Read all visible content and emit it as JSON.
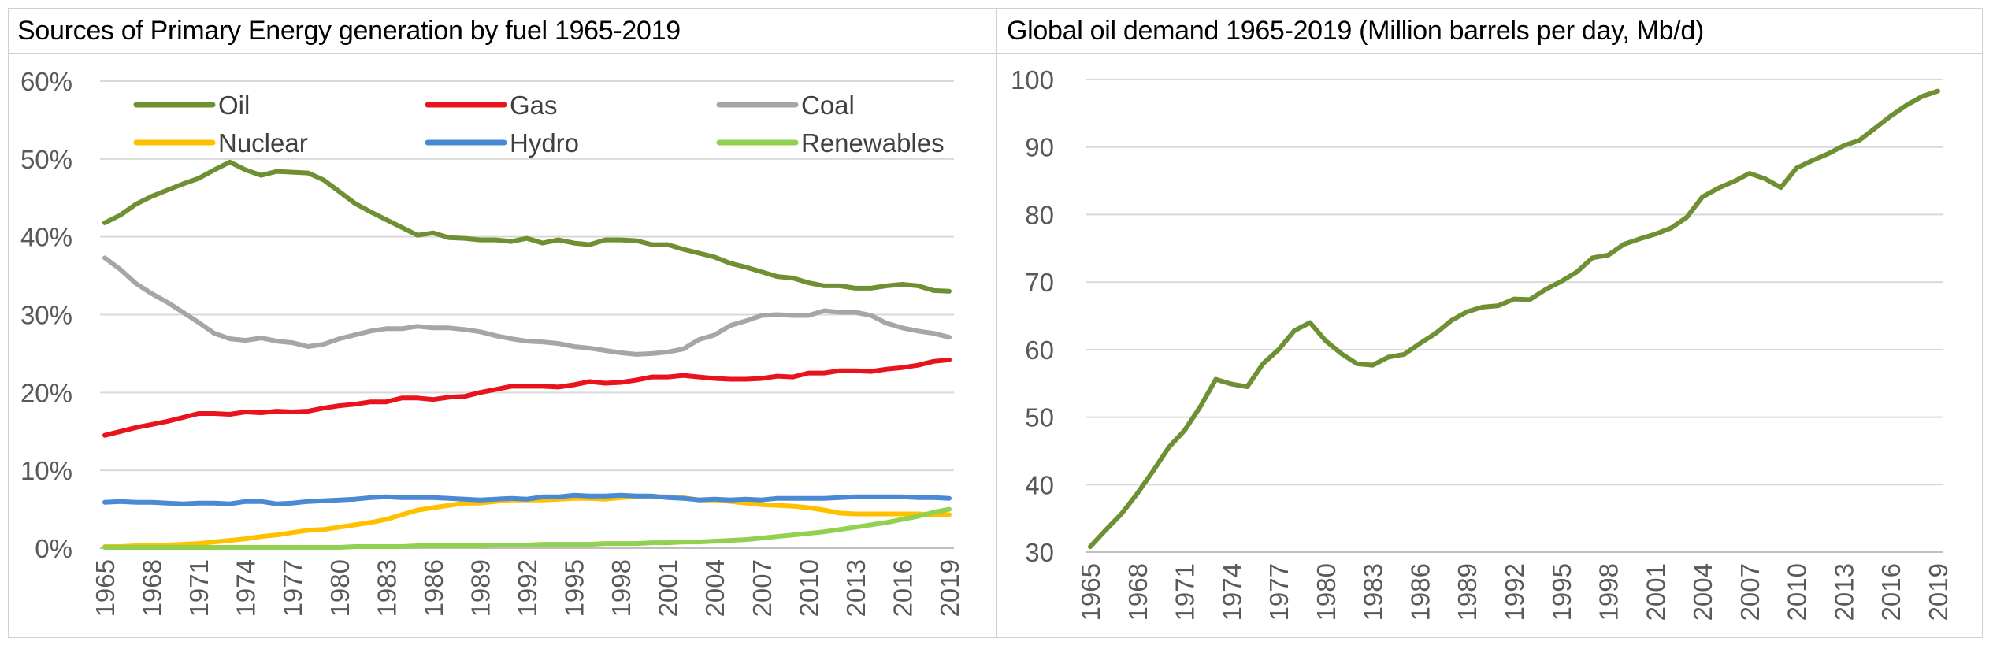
{
  "chart_data": [
    {
      "type": "line",
      "title": "Sources of Primary Energy generation by fuel 1965-2019",
      "x": [
        1965,
        1966,
        1967,
        1968,
        1969,
        1970,
        1971,
        1972,
        1973,
        1974,
        1975,
        1976,
        1977,
        1978,
        1979,
        1980,
        1981,
        1982,
        1983,
        1984,
        1985,
        1986,
        1987,
        1988,
        1989,
        1990,
        1991,
        1992,
        1993,
        1994,
        1995,
        1996,
        1997,
        1998,
        1999,
        2000,
        2001,
        2002,
        2003,
        2004,
        2005,
        2006,
        2007,
        2008,
        2009,
        2010,
        2011,
        2012,
        2013,
        2014,
        2015,
        2016,
        2017,
        2018,
        2019
      ],
      "xticks": [
        "1965",
        "1968",
        "1971",
        "1974",
        "1977",
        "1980",
        "1983",
        "1986",
        "1989",
        "1992",
        "1995",
        "1998",
        "2001",
        "2004",
        "2007",
        "2010",
        "2013",
        "2016",
        "2019"
      ],
      "yticks": [
        "0%",
        "10%",
        "20%",
        "30%",
        "40%",
        "50%",
        "60%"
      ],
      "ylim": [
        0,
        60
      ],
      "grid": true,
      "legend": "top",
      "series": [
        {
          "name": "Oil",
          "color": "#6f8f33",
          "values": [
            41.8,
            42.8,
            44.2,
            45.2,
            46.0,
            46.8,
            47.5,
            48.6,
            49.6,
            48.6,
            47.9,
            48.4,
            48.3,
            48.2,
            47.3,
            45.8,
            44.3,
            43.2,
            42.2,
            41.2,
            40.2,
            40.5,
            39.9,
            39.8,
            39.6,
            39.6,
            39.4,
            39.8,
            39.2,
            39.6,
            39.2,
            39.0,
            39.6,
            39.6,
            39.5,
            39.0,
            39.0,
            38.4,
            37.9,
            37.4,
            36.6,
            36.1,
            35.5,
            34.9,
            34.7,
            34.1,
            33.7,
            33.7,
            33.4,
            33.4,
            33.7,
            33.9,
            33.7,
            33.1,
            33.0
          ]
        },
        {
          "name": "Gas",
          "color": "#e8131c",
          "values": [
            14.5,
            15.0,
            15.5,
            15.9,
            16.3,
            16.8,
            17.3,
            17.3,
            17.2,
            17.5,
            17.4,
            17.6,
            17.5,
            17.6,
            18.0,
            18.3,
            18.5,
            18.8,
            18.8,
            19.3,
            19.3,
            19.1,
            19.4,
            19.5,
            20.0,
            20.4,
            20.8,
            20.8,
            20.8,
            20.7,
            21.0,
            21.4,
            21.2,
            21.3,
            21.6,
            22.0,
            22.0,
            22.2,
            22.0,
            21.8,
            21.7,
            21.7,
            21.8,
            22.1,
            22.0,
            22.5,
            22.5,
            22.8,
            22.8,
            22.7,
            23.0,
            23.2,
            23.5,
            24.0,
            24.2
          ]
        },
        {
          "name": "Coal",
          "color": "#a6a6a6",
          "values": [
            37.3,
            35.8,
            34.0,
            32.7,
            31.6,
            30.3,
            29.0,
            27.6,
            26.9,
            26.7,
            27.0,
            26.6,
            26.4,
            25.9,
            26.2,
            26.9,
            27.4,
            27.9,
            28.2,
            28.2,
            28.5,
            28.3,
            28.3,
            28.1,
            27.8,
            27.3,
            26.9,
            26.6,
            26.5,
            26.3,
            25.9,
            25.7,
            25.4,
            25.1,
            24.9,
            25.0,
            25.2,
            25.6,
            26.8,
            27.4,
            28.6,
            29.2,
            29.9,
            30.0,
            29.9,
            29.9,
            30.5,
            30.3,
            30.3,
            29.9,
            28.9,
            28.3,
            27.9,
            27.6,
            27.1
          ]
        },
        {
          "name": "Nuclear",
          "color": "#ffc000",
          "values": [
            0.2,
            0.2,
            0.3,
            0.3,
            0.4,
            0.5,
            0.6,
            0.8,
            1.0,
            1.2,
            1.5,
            1.7,
            2.0,
            2.3,
            2.4,
            2.7,
            3.0,
            3.3,
            3.7,
            4.3,
            4.9,
            5.2,
            5.5,
            5.8,
            5.8,
            6.0,
            6.2,
            6.2,
            6.2,
            6.3,
            6.4,
            6.4,
            6.3,
            6.5,
            6.6,
            6.6,
            6.6,
            6.5,
            6.2,
            6.2,
            6.0,
            5.8,
            5.6,
            5.5,
            5.4,
            5.2,
            4.9,
            4.5,
            4.4,
            4.4,
            4.4,
            4.4,
            4.4,
            4.3,
            4.3
          ]
        },
        {
          "name": "Hydro",
          "color": "#4a89d4",
          "values": [
            5.9,
            6.0,
            5.9,
            5.9,
            5.8,
            5.7,
            5.8,
            5.8,
            5.7,
            6.0,
            6.0,
            5.7,
            5.8,
            6.0,
            6.1,
            6.2,
            6.3,
            6.5,
            6.6,
            6.5,
            6.5,
            6.5,
            6.4,
            6.3,
            6.2,
            6.3,
            6.4,
            6.3,
            6.6,
            6.6,
            6.8,
            6.7,
            6.7,
            6.8,
            6.7,
            6.7,
            6.5,
            6.4,
            6.2,
            6.3,
            6.2,
            6.3,
            6.2,
            6.4,
            6.4,
            6.4,
            6.4,
            6.5,
            6.6,
            6.6,
            6.6,
            6.6,
            6.5,
            6.5,
            6.4
          ]
        },
        {
          "name": "Renewables",
          "color": "#92d050",
          "values": [
            0.1,
            0.1,
            0.1,
            0.1,
            0.1,
            0.1,
            0.1,
            0.1,
            0.1,
            0.1,
            0.1,
            0.1,
            0.1,
            0.1,
            0.1,
            0.1,
            0.2,
            0.2,
            0.2,
            0.2,
            0.3,
            0.3,
            0.3,
            0.3,
            0.3,
            0.4,
            0.4,
            0.4,
            0.5,
            0.5,
            0.5,
            0.5,
            0.6,
            0.6,
            0.6,
            0.7,
            0.7,
            0.8,
            0.8,
            0.9,
            1.0,
            1.1,
            1.3,
            1.5,
            1.7,
            1.9,
            2.1,
            2.4,
            2.7,
            3.0,
            3.3,
            3.7,
            4.1,
            4.6,
            5.0
          ]
        }
      ]
    },
    {
      "type": "line",
      "title": "Global oil demand 1965-2019 (Million barrels per day, Mb/d)",
      "x": [
        1965,
        1966,
        1967,
        1968,
        1969,
        1970,
        1971,
        1972,
        1973,
        1974,
        1975,
        1976,
        1977,
        1978,
        1979,
        1980,
        1981,
        1982,
        1983,
        1984,
        1985,
        1986,
        1987,
        1988,
        1989,
        1990,
        1991,
        1992,
        1993,
        1994,
        1995,
        1996,
        1997,
        1998,
        1999,
        2000,
        2001,
        2002,
        2003,
        2004,
        2005,
        2006,
        2007,
        2008,
        2009,
        2010,
        2011,
        2012,
        2013,
        2014,
        2015,
        2016,
        2017,
        2018,
        2019
      ],
      "xticks": [
        "1965",
        "1968",
        "1971",
        "1974",
        "1977",
        "1980",
        "1983",
        "1986",
        "1989",
        "1992",
        "1995",
        "1998",
        "2001",
        "2004",
        "2007",
        "2010",
        "2013",
        "2016",
        "2019"
      ],
      "yticks": [
        "30",
        "40",
        "50",
        "60",
        "70",
        "80",
        "90",
        "100"
      ],
      "ylim": [
        30,
        100
      ],
      "grid": true,
      "series": [
        {
          "color": "#6f8f33",
          "values": [
            30.8,
            33.3,
            35.7,
            38.7,
            42.0,
            45.5,
            48.0,
            51.5,
            55.6,
            54.9,
            54.5,
            57.9,
            60.0,
            62.8,
            64.0,
            61.3,
            59.4,
            57.9,
            57.7,
            58.9,
            59.3,
            60.9,
            62.4,
            64.3,
            65.6,
            66.3,
            66.5,
            67.5,
            67.4,
            68.9,
            70.1,
            71.5,
            73.6,
            74.0,
            75.6,
            76.4,
            77.1,
            78.0,
            79.6,
            82.6,
            83.9,
            84.9,
            86.1,
            85.3,
            84.0,
            86.9,
            88.0,
            89.0,
            90.2,
            91.0,
            92.8,
            94.6,
            96.2,
            97.5,
            98.3
          ]
        }
      ]
    }
  ]
}
